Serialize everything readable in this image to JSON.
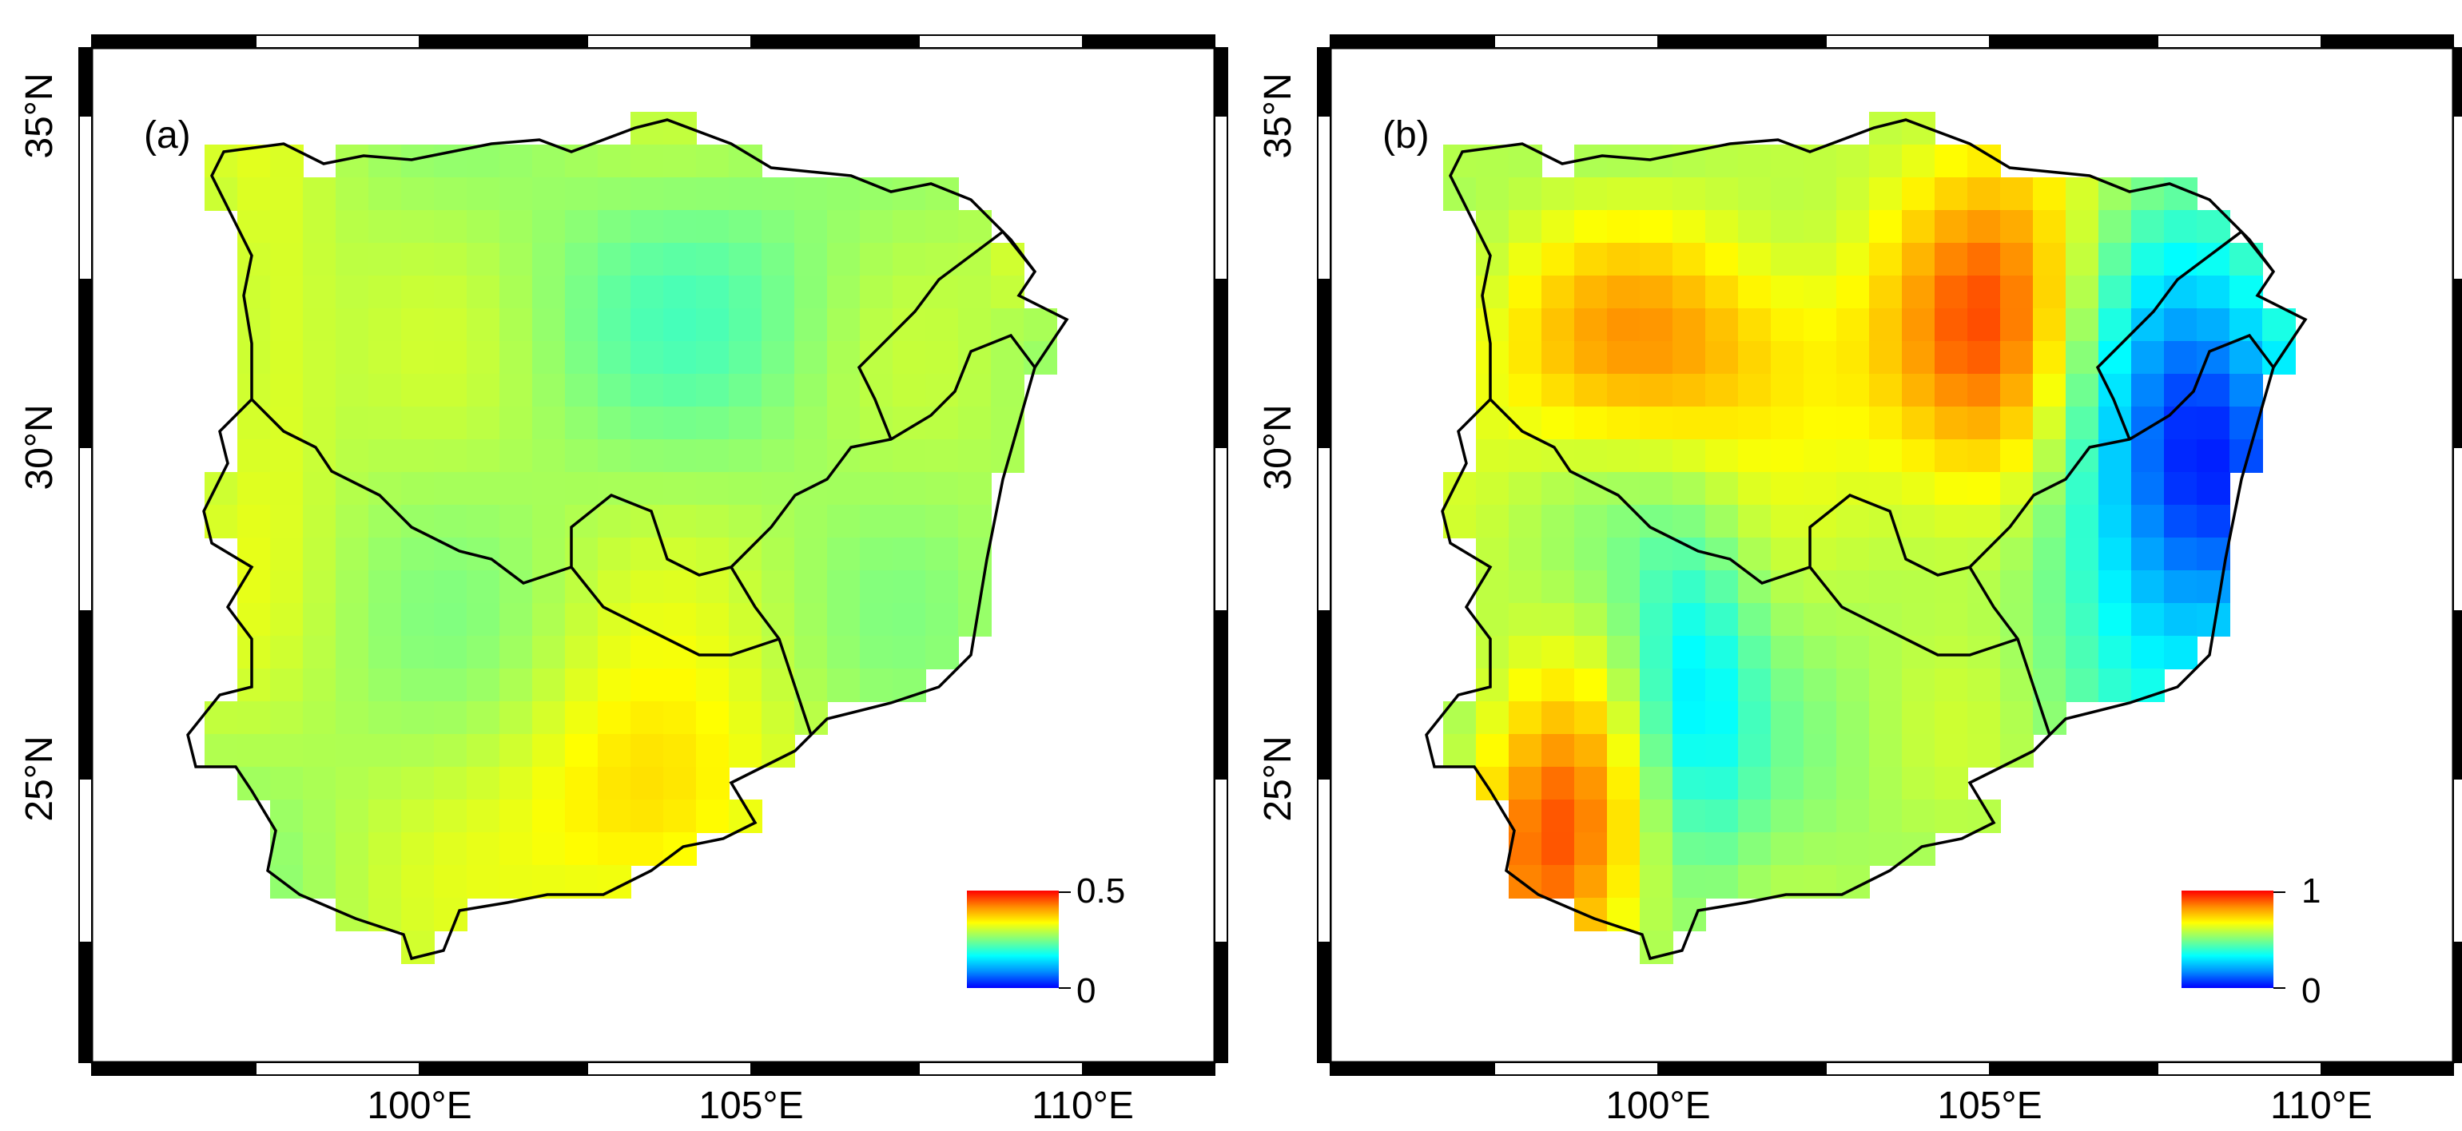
{
  "panels": [
    {
      "label": "(a)",
      "colorbar": {
        "max_label": "0.5",
        "min_label": "0"
      },
      "value_range": [
        0,
        0.5
      ]
    },
    {
      "label": "(b)",
      "colorbar": {
        "max_label": "1",
        "min_label": "0"
      },
      "value_range": [
        0,
        1
      ]
    }
  ],
  "axes": {
    "lat_ticks": [
      {
        "lat": 35,
        "label": "35°N"
      },
      {
        "lat": 30,
        "label": "30°N"
      },
      {
        "lat": 25,
        "label": "25°N"
      }
    ],
    "lon_ticks": [
      {
        "lon": 100,
        "label": "100°E"
      },
      {
        "lon": 105,
        "label": "105°E"
      },
      {
        "lon": 110,
        "label": "110°E"
      }
    ],
    "lon_range": [
      95.2,
      112.2
    ],
    "lat_range": [
      20.2,
      35.6
    ]
  },
  "colormap": [
    "#0000ff",
    "#0090ff",
    "#00ffff",
    "#80ff80",
    "#ffff00",
    "#ff9000",
    "#ff0000"
  ]
}
